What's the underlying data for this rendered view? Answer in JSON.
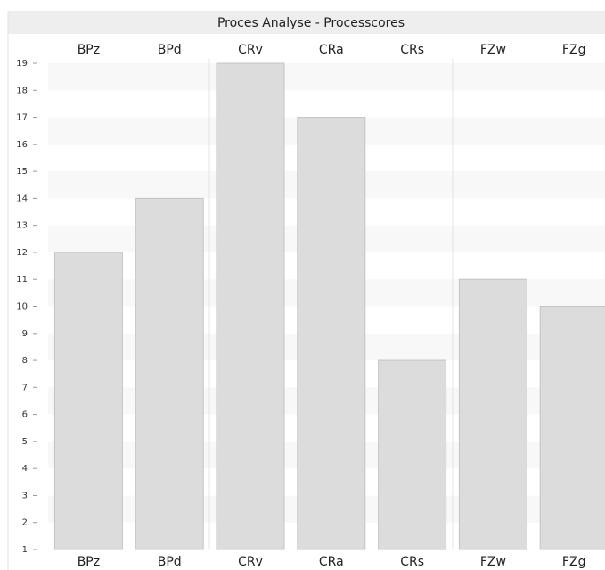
{
  "chart_data": {
    "type": "bar",
    "title": "Proces Analyse - Processcores",
    "categories": [
      "BPz",
      "BPd",
      "CRv",
      "CRa",
      "CRs",
      "FZw",
      "FZg"
    ],
    "values": [
      12,
      14,
      19,
      17,
      8,
      11,
      10
    ],
    "color": "#dcdcdc",
    "ylim": [
      1,
      19
    ],
    "yticks": [
      1,
      2,
      3,
      4,
      5,
      6,
      7,
      8,
      9,
      10,
      11,
      12,
      13,
      14,
      15,
      16,
      17,
      18,
      19
    ]
  }
}
